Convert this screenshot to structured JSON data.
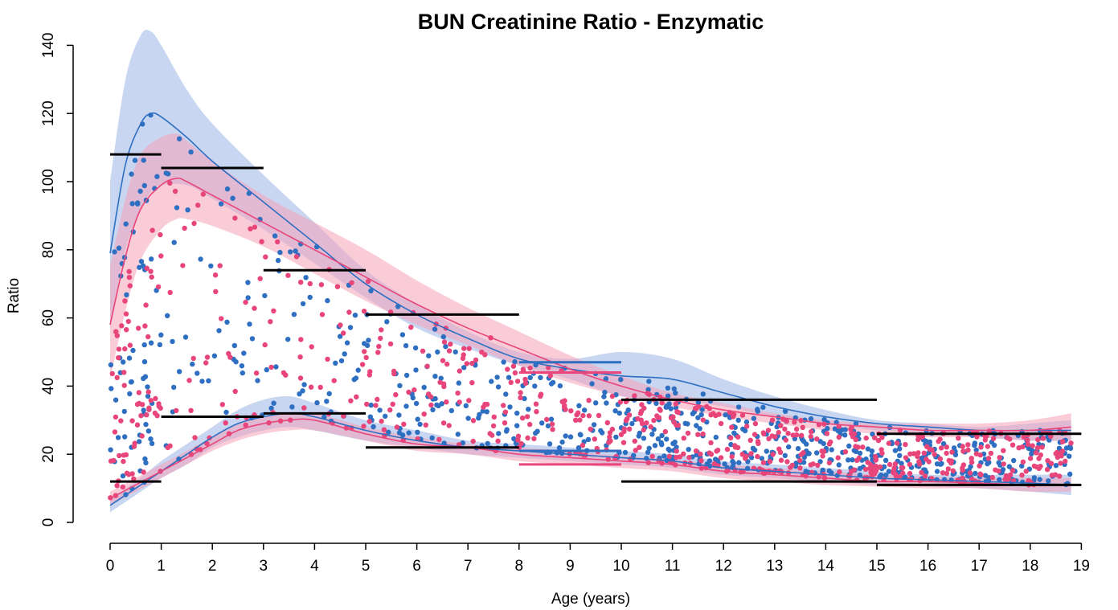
{
  "chart_data": {
    "type": "scatter",
    "title": "BUN Creatinine Ratio - Enzymatic",
    "xlabel": "Age (years)",
    "ylabel": "Ratio",
    "xlim": [
      0,
      19
    ],
    "ylim": [
      0,
      140
    ],
    "x_ticks": [
      0,
      1,
      2,
      3,
      4,
      5,
      6,
      7,
      8,
      9,
      10,
      11,
      12,
      13,
      14,
      15,
      16,
      17,
      18,
      19
    ],
    "y_ticks": [
      0,
      20,
      40,
      60,
      80,
      100,
      120,
      140
    ],
    "grid": false,
    "legend": "none",
    "colors": {
      "blue_series": "#2e6fc2",
      "pink_series": "#e8457a",
      "blue_band": "#9db4e6",
      "pink_band": "#f4a3b8",
      "reference_interval": "#000000"
    },
    "series": [
      {
        "color": "blue",
        "upper_curve": [
          [
            0,
            79
          ],
          [
            0.3,
            105
          ],
          [
            0.6,
            117
          ],
          [
            0.8,
            120
          ],
          [
            1,
            119
          ],
          [
            1.5,
            113
          ],
          [
            2,
            106
          ],
          [
            3,
            94
          ],
          [
            4,
            82
          ],
          [
            5,
            70
          ],
          [
            6,
            61
          ],
          [
            7,
            54
          ],
          [
            8,
            48
          ],
          [
            9,
            45
          ],
          [
            10,
            43
          ],
          [
            11,
            42
          ],
          [
            12,
            38
          ],
          [
            13,
            34
          ],
          [
            14,
            31
          ],
          [
            15,
            29
          ],
          [
            16,
            28
          ],
          [
            17,
            27
          ],
          [
            18,
            27
          ],
          [
            18.8,
            27
          ]
        ],
        "upper_band": [
          [
            0,
            100
          ],
          [
            0.3,
            130
          ],
          [
            0.6,
            143
          ],
          [
            0.8,
            144
          ],
          [
            1,
            140
          ],
          [
            1.5,
            127
          ],
          [
            2,
            117
          ],
          [
            3,
            102
          ],
          [
            4,
            88
          ],
          [
            5,
            74
          ],
          [
            6,
            64
          ],
          [
            7,
            56
          ],
          [
            8,
            50
          ],
          [
            9,
            48
          ],
          [
            10,
            50
          ],
          [
            11,
            48
          ],
          [
            12,
            42
          ],
          [
            13,
            37
          ],
          [
            14,
            33
          ],
          [
            15,
            30
          ],
          [
            16,
            29
          ],
          [
            17,
            28
          ],
          [
            18,
            29
          ],
          [
            18.8,
            30
          ]
        ],
        "upper_band_low": [
          [
            0,
            58
          ],
          [
            0.3,
            80
          ],
          [
            0.6,
            92
          ],
          [
            0.8,
            97
          ],
          [
            1,
            99
          ],
          [
            1.5,
            99
          ],
          [
            2,
            95
          ],
          [
            3,
            86
          ],
          [
            4,
            76
          ],
          [
            5,
            66
          ],
          [
            6,
            57
          ],
          [
            7,
            51
          ],
          [
            8,
            46
          ],
          [
            9,
            42
          ],
          [
            10,
            37
          ],
          [
            11,
            36
          ],
          [
            12,
            34
          ],
          [
            13,
            31
          ],
          [
            14,
            29
          ],
          [
            15,
            27
          ],
          [
            16,
            26
          ],
          [
            17,
            25
          ],
          [
            18,
            24
          ],
          [
            18.8,
            24
          ]
        ],
        "lower_curve": [
          [
            0,
            5
          ],
          [
            0.5,
            10
          ],
          [
            1,
            15
          ],
          [
            1.5,
            20
          ],
          [
            2,
            25
          ],
          [
            2.5,
            29
          ],
          [
            3,
            31
          ],
          [
            3.5,
            32
          ],
          [
            4,
            31
          ],
          [
            5,
            27
          ],
          [
            6,
            24
          ],
          [
            7,
            22
          ],
          [
            8,
            21
          ],
          [
            9,
            20
          ],
          [
            10,
            19
          ],
          [
            11,
            18
          ],
          [
            12,
            16
          ],
          [
            13,
            15
          ],
          [
            14,
            14
          ],
          [
            15,
            13
          ],
          [
            16,
            12.5
          ],
          [
            17,
            12
          ],
          [
            18,
            11.5
          ],
          [
            18.8,
            11
          ]
        ],
        "lower_band": [
          [
            0,
            7
          ],
          [
            0.5,
            12
          ],
          [
            1,
            18
          ],
          [
            1.5,
            23
          ],
          [
            2,
            28
          ],
          [
            2.5,
            33
          ],
          [
            3,
            36
          ],
          [
            3.5,
            37
          ],
          [
            4,
            35
          ],
          [
            5,
            30
          ],
          [
            6,
            27
          ],
          [
            7,
            24
          ],
          [
            8,
            23
          ],
          [
            9,
            22
          ],
          [
            10,
            21
          ],
          [
            11,
            20
          ],
          [
            12,
            18
          ],
          [
            13,
            17
          ],
          [
            14,
            16
          ],
          [
            15,
            15
          ],
          [
            16,
            14
          ],
          [
            17,
            14
          ],
          [
            18,
            14
          ],
          [
            18.8,
            14
          ]
        ],
        "lower_band_low": [
          [
            0,
            3
          ],
          [
            0.5,
            8
          ],
          [
            1,
            13
          ],
          [
            1.5,
            17
          ],
          [
            2,
            22
          ],
          [
            2.5,
            25
          ],
          [
            3,
            27
          ],
          [
            3.5,
            28
          ],
          [
            4,
            27
          ],
          [
            5,
            24
          ],
          [
            6,
            22
          ],
          [
            7,
            20
          ],
          [
            8,
            19
          ],
          [
            9,
            18
          ],
          [
            10,
            17
          ],
          [
            11,
            16
          ],
          [
            12,
            14
          ],
          [
            13,
            13
          ],
          [
            14,
            12
          ],
          [
            15,
            11
          ],
          [
            16,
            10.5
          ],
          [
            17,
            10
          ],
          [
            18,
            9
          ],
          [
            18.8,
            8
          ]
        ]
      },
      {
        "color": "pink",
        "upper_curve": [
          [
            0,
            58
          ],
          [
            0.3,
            78
          ],
          [
            0.6,
            92
          ],
          [
            1,
            99
          ],
          [
            1.3,
            101
          ],
          [
            1.5,
            100
          ],
          [
            2,
            96
          ],
          [
            3,
            88
          ],
          [
            4,
            80
          ],
          [
            5,
            72
          ],
          [
            6,
            64
          ],
          [
            7,
            57
          ],
          [
            8,
            51
          ],
          [
            9,
            45
          ],
          [
            10,
            40
          ],
          [
            11,
            36
          ],
          [
            12,
            33
          ],
          [
            13,
            31
          ],
          [
            14,
            29
          ],
          [
            15,
            28
          ],
          [
            16,
            27
          ],
          [
            17,
            27
          ],
          [
            18,
            27
          ],
          [
            18.8,
            28
          ]
        ],
        "upper_band": [
          [
            0,
            75
          ],
          [
            0.3,
            95
          ],
          [
            0.6,
            108
          ],
          [
            1,
            113
          ],
          [
            1.3,
            114
          ],
          [
            1.5,
            112
          ],
          [
            2,
            106
          ],
          [
            3,
            96
          ],
          [
            4,
            88
          ],
          [
            5,
            80
          ],
          [
            6,
            71
          ],
          [
            7,
            63
          ],
          [
            8,
            56
          ],
          [
            9,
            49
          ],
          [
            10,
            43
          ],
          [
            11,
            38
          ],
          [
            12,
            35
          ],
          [
            13,
            32
          ],
          [
            14,
            30
          ],
          [
            15,
            29
          ],
          [
            16,
            29
          ],
          [
            17,
            29
          ],
          [
            18,
            30
          ],
          [
            18.8,
            32
          ]
        ],
        "upper_band_low": [
          [
            0,
            42
          ],
          [
            0.3,
            62
          ],
          [
            0.6,
            77
          ],
          [
            1,
            86
          ],
          [
            1.3,
            89
          ],
          [
            1.5,
            89
          ],
          [
            2,
            87
          ],
          [
            3,
            81
          ],
          [
            4,
            73
          ],
          [
            5,
            65
          ],
          [
            6,
            58
          ],
          [
            7,
            52
          ],
          [
            8,
            46
          ],
          [
            9,
            41
          ],
          [
            10,
            37
          ],
          [
            11,
            34
          ],
          [
            12,
            31
          ],
          [
            13,
            29
          ],
          [
            14,
            27
          ],
          [
            15,
            26
          ],
          [
            16,
            25
          ],
          [
            17,
            25
          ],
          [
            18,
            24
          ],
          [
            18.8,
            24
          ]
        ],
        "lower_curve": [
          [
            0,
            7
          ],
          [
            0.5,
            11
          ],
          [
            1,
            15
          ],
          [
            1.5,
            19
          ],
          [
            2,
            23
          ],
          [
            2.5,
            27
          ],
          [
            3,
            29
          ],
          [
            3.5,
            30
          ],
          [
            4,
            30
          ],
          [
            5,
            26
          ],
          [
            6,
            23
          ],
          [
            7,
            22
          ],
          [
            8,
            20
          ],
          [
            9,
            19
          ],
          [
            10,
            18
          ],
          [
            11,
            17
          ],
          [
            12,
            15
          ],
          [
            13,
            14
          ],
          [
            14,
            13
          ],
          [
            15,
            12
          ],
          [
            16,
            12
          ],
          [
            17,
            11.5
          ],
          [
            18,
            11
          ],
          [
            18.8,
            11
          ]
        ],
        "lower_band": [
          [
            0,
            9
          ],
          [
            0.5,
            13
          ],
          [
            1,
            17
          ],
          [
            1.5,
            21
          ],
          [
            2,
            25
          ],
          [
            2.5,
            29
          ],
          [
            3,
            31
          ],
          [
            3.5,
            32
          ],
          [
            4,
            32
          ],
          [
            5,
            28
          ],
          [
            6,
            25
          ],
          [
            7,
            23
          ],
          [
            8,
            22
          ],
          [
            9,
            21
          ],
          [
            10,
            19.5
          ],
          [
            11,
            18.5
          ],
          [
            12,
            17
          ],
          [
            13,
            16
          ],
          [
            14,
            15
          ],
          [
            15,
            14
          ],
          [
            16,
            13.5
          ],
          [
            17,
            13
          ],
          [
            18,
            13
          ],
          [
            18.8,
            13
          ]
        ],
        "lower_band_low": [
          [
            0,
            5
          ],
          [
            0.5,
            9
          ],
          [
            1,
            13
          ],
          [
            1.5,
            17
          ],
          [
            2,
            21
          ],
          [
            2.5,
            24
          ],
          [
            3,
            26
          ],
          [
            3.5,
            27
          ],
          [
            4,
            27
          ],
          [
            5,
            24
          ],
          [
            6,
            21
          ],
          [
            7,
            20
          ],
          [
            8,
            18
          ],
          [
            9,
            17
          ],
          [
            10,
            16
          ],
          [
            11,
            15
          ],
          [
            12,
            13
          ],
          [
            13,
            12
          ],
          [
            14,
            11
          ],
          [
            15,
            10.5
          ],
          [
            16,
            10
          ],
          [
            17,
            10
          ],
          [
            18,
            9
          ],
          [
            18.8,
            9
          ]
        ]
      }
    ],
    "reference_intervals": [
      {
        "x_start": 0,
        "x_end": 1,
        "lower": 12,
        "upper": 108
      },
      {
        "x_start": 1,
        "x_end": 3,
        "lower": 31,
        "upper": 104
      },
      {
        "x_start": 3,
        "x_end": 5,
        "lower": 32,
        "upper": 74
      },
      {
        "x_start": 5,
        "x_end": 8,
        "lower": 22,
        "upper": 61
      },
      {
        "x_start": 10,
        "x_end": 15,
        "lower": 12,
        "upper": 36
      },
      {
        "x_start": 15,
        "x_end": 19,
        "lower": 11,
        "upper": 26
      }
    ],
    "partition_intervals": [
      {
        "color": "blue",
        "x_start": 8,
        "x_end": 10,
        "upper": 47,
        "lower": 21
      },
      {
        "color": "pink",
        "x_start": 8,
        "x_end": 10,
        "upper": 44,
        "lower": 17
      }
    ]
  }
}
